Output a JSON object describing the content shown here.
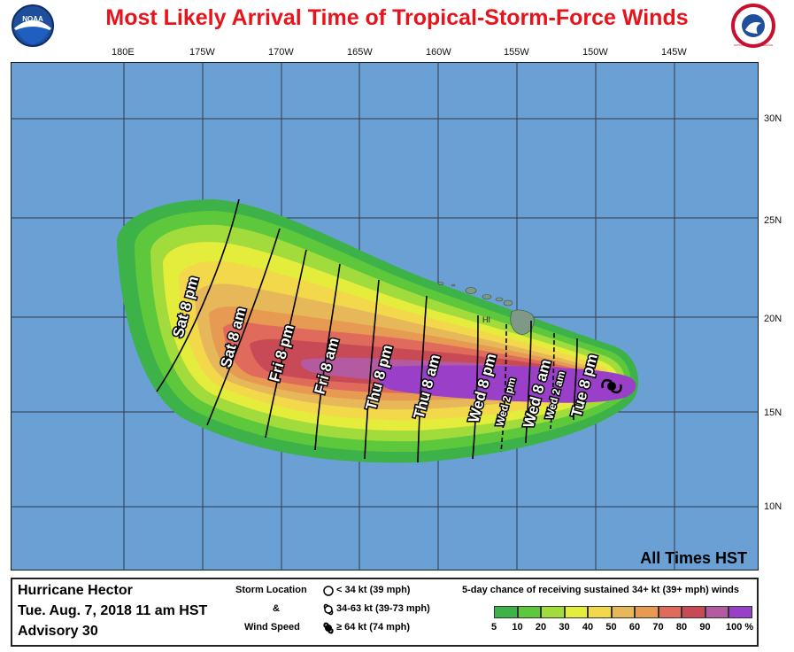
{
  "title": "Most Likely Arrival Time of Tropical-Storm-Force Winds",
  "logos": {
    "left": "noaa-logo",
    "left_text": "NOAA",
    "right": "nws-logo",
    "right_text": "NATIONAL WEATHER SERVICE"
  },
  "longitude_labels": [
    "180E",
    "175W",
    "170W",
    "165W",
    "160W",
    "155W",
    "150W",
    "145W"
  ],
  "latitude_labels": [
    "30N",
    "25N",
    "20N",
    "15N",
    "10N"
  ],
  "region_label": "HI",
  "times_note": "All Times HST",
  "arrival_labels": [
    {
      "text": "Sat 8 pm"
    },
    {
      "text": "Sat 8 am"
    },
    {
      "text": "Fri 8 pm"
    },
    {
      "text": "Fri 8 am"
    },
    {
      "text": "Thu 8 pm"
    },
    {
      "text": "Thu 8 am"
    },
    {
      "text": "Wed 8 pm"
    },
    {
      "text": "Wed 2 pm"
    },
    {
      "text": "Wed 8 am"
    },
    {
      "text": "Wed 2 am"
    },
    {
      "text": "Tue 8 pm"
    }
  ],
  "legend": {
    "storm": "Hurricane Hector",
    "date": "Tue. Aug. 7, 2018   11 am HST",
    "advisory": "Advisory 30",
    "storm_location_label": "Storm Location",
    "amp": "&",
    "wind_speed_label": "Wind Speed",
    "symbols": [
      "< 34 kt (39 mph)",
      "34-63 kt (39-73 mph)",
      "≥ 64 kt (74 mph)"
    ],
    "prob_title": "5-day chance of receiving sustained 34+ kt (39+ mph) winds",
    "prob_ticks": [
      "5",
      "10",
      "20",
      "30",
      "40",
      "50",
      "60",
      "70",
      "80",
      "90",
      "100 %"
    ],
    "prob_colors": [
      "#3cb249",
      "#5dc83c",
      "#a2dc3c",
      "#e4ec3c",
      "#f2d84a",
      "#e6b85a",
      "#e69a52",
      "#e06a5c",
      "#c84a56",
      "#b45aa0",
      "#9a40c8"
    ]
  },
  "colors": {
    "ocean": "#6aa0d4",
    "land": "#7e9a86",
    "grid": "#2d3a4a",
    "title": "#e8141b"
  }
}
